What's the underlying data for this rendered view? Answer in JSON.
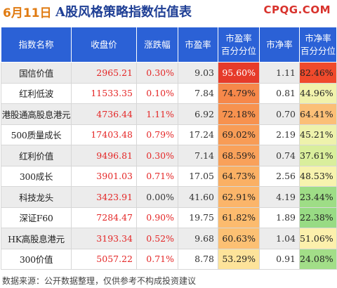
{
  "header": {
    "date": "6月11日",
    "title": "A股风格策略指数估值表",
    "logo": "CPQG.COM"
  },
  "columns": [
    "指数名称",
    "收盘价",
    "涨跌幅",
    "市盈率",
    "市盈率\n百分分位",
    "市净率",
    "市净率\n百分分位"
  ],
  "rows": [
    {
      "name": "国信价值",
      "close": "2965.21",
      "change": "0.30%",
      "pe": "9.03",
      "pe_pct": "95.60%",
      "pb": "1.11",
      "pb_pct": "82.46%",
      "pe_color": "#e63b2a",
      "pe_text": "#ffffff",
      "pb_color": "#f04a2c"
    },
    {
      "name": "红利低波",
      "close": "11533.35",
      "change": "0.10%",
      "pe": "7.84",
      "pe_pct": "74.79%",
      "pb": "0.81",
      "pb_pct": "44.96%",
      "pe_color": "#f6884a",
      "pe_text": "#222222",
      "pb_color": "#f1f2ac"
    },
    {
      "name": "港股通高股息港元",
      "close": "4736.44",
      "change": "1.11%",
      "pe": "6.92",
      "pe_pct": "72.18%",
      "pb": "0.70",
      "pb_pct": "64.41%",
      "pe_color": "#f7924f",
      "pe_text": "#222222",
      "pb_color": "#fbbf77"
    },
    {
      "name": "500质量成长",
      "close": "17403.48",
      "change": "0.79%",
      "pe": "17.24",
      "pe_pct": "69.02%",
      "pb": "2.19",
      "pb_pct": "45.21%",
      "pe_color": "#f89c56",
      "pe_text": "#222222",
      "pb_color": "#eef2ac"
    },
    {
      "name": "红利价值",
      "close": "9496.81",
      "change": "0.30%",
      "pe": "7.14",
      "pe_pct": "68.59%",
      "pb": "0.74",
      "pb_pct": "37.61%",
      "pe_color": "#f9a15a",
      "pe_text": "#222222",
      "pb_color": "#d9ee9c"
    },
    {
      "name": "300成长",
      "close": "3901.03",
      "change": "0.71%",
      "pe": "17.05",
      "pe_pct": "64.73%",
      "pb": "2.56",
      "pb_pct": "48.53%",
      "pe_color": "#fab064",
      "pe_text": "#222222",
      "pb_color": "#f7f3ae"
    },
    {
      "name": "科技龙头",
      "close": "3423.91",
      "change": "0.00%",
      "pe": "41.60",
      "pe_pct": "62.91%",
      "pb": "4.19",
      "pb_pct": "23.44%",
      "pe_color": "#fbb56a",
      "pe_text": "#222222",
      "pb_color": "#9edd86"
    },
    {
      "name": "深证F60",
      "close": "7284.47",
      "change": "0.90%",
      "pe": "19.75",
      "pe_pct": "61.82%",
      "pb": "1.89",
      "pb_pct": "22.38%",
      "pe_color": "#fcbb6e",
      "pe_text": "#222222",
      "pb_color": "#98db84"
    },
    {
      "name": "HK高股息港元",
      "close": "3193.34",
      "change": "0.52%",
      "pe": "9.68",
      "pe_pct": "60.63%",
      "pb": "1.04",
      "pb_pct": "51.06%",
      "pe_color": "#fcc073",
      "pe_text": "#222222",
      "pb_color": "#fcf0ac"
    },
    {
      "name": "300价值",
      "close": "5057.22",
      "change": "0.71%",
      "pe": "8.78",
      "pe_pct": "53.29%",
      "pb": "0.91",
      "pb_pct": "24.08%",
      "pe_color": "#fde39a",
      "pe_text": "#222222",
      "pb_color": "#a2de88"
    }
  ],
  "footer": "数据来源：公开数据整理，仅供参考不构成投资建议"
}
